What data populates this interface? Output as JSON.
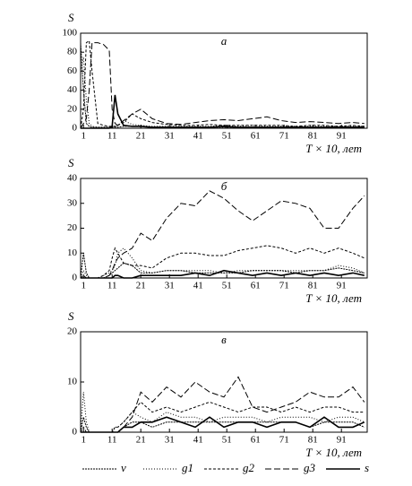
{
  "chart_data": [
    {
      "type": "line",
      "title": "а",
      "y_label": "S",
      "x_label": "T × 10, лет",
      "x": [
        0,
        1,
        2,
        3,
        4,
        6,
        8,
        10,
        11,
        12,
        13,
        15,
        18,
        21,
        25,
        30,
        35,
        40,
        45,
        50,
        55,
        60,
        65,
        70,
        75,
        80,
        85,
        90,
        95,
        99
      ],
      "xlim": [
        0,
        100
      ],
      "xticks": [
        1,
        11,
        21,
        31,
        41,
        51,
        61,
        71,
        81,
        91
      ],
      "ylim": [
        0,
        100
      ],
      "yticks": [
        0,
        20,
        40,
        60,
        80,
        100
      ],
      "grid": false,
      "series": [
        {
          "name": "v",
          "color": "#000000",
          "dash": "2,1",
          "values": [
            90,
            40,
            5,
            2,
            1,
            1,
            1,
            1,
            1,
            1,
            1,
            2,
            2,
            2,
            1,
            1,
            1,
            1,
            1,
            1,
            1,
            1,
            1,
            1,
            1,
            1,
            1,
            1,
            1,
            1
          ]
        },
        {
          "name": "g1",
          "color": "#000000",
          "dash": "1,2",
          "values": [
            60,
            75,
            30,
            5,
            2,
            1,
            1,
            1,
            1,
            2,
            3,
            8,
            4,
            3,
            2,
            2,
            2,
            2,
            2,
            3,
            2,
            3,
            2,
            2,
            2,
            2,
            2,
            2,
            2,
            2
          ]
        },
        {
          "name": "g2",
          "color": "#000000",
          "dash": "3,2",
          "values": [
            0,
            20,
            90,
            92,
            60,
            5,
            3,
            2,
            2,
            2,
            3,
            6,
            15,
            10,
            6,
            4,
            3,
            3,
            4,
            3,
            3,
            3,
            3,
            3,
            2,
            3,
            3,
            2,
            3,
            2
          ]
        },
        {
          "name": "g3",
          "color": "#000000",
          "dash": "7,3",
          "values": [
            0,
            5,
            10,
            40,
            90,
            90,
            88,
            82,
            20,
            5,
            3,
            8,
            15,
            20,
            10,
            5,
            4,
            6,
            8,
            9,
            8,
            10,
            12,
            8,
            6,
            7,
            6,
            5,
            6,
            5
          ]
        },
        {
          "name": "s",
          "color": "#000000",
          "dash": "",
          "values": [
            0,
            0,
            0,
            0,
            0,
            0,
            0,
            0,
            2,
            35,
            15,
            3,
            2,
            2,
            1,
            1,
            1,
            1,
            1,
            2,
            1,
            1,
            1,
            1,
            1,
            1,
            1,
            1,
            1,
            1
          ]
        }
      ]
    },
    {
      "type": "line",
      "title": "б",
      "y_label": "S",
      "x_label": "T × 10, лет",
      "x": [
        0,
        1,
        2,
        3,
        4,
        6,
        8,
        10,
        11,
        12,
        13,
        15,
        18,
        21,
        25,
        30,
        35,
        40,
        45,
        50,
        55,
        60,
        65,
        70,
        75,
        80,
        85,
        90,
        95,
        99
      ],
      "xlim": [
        0,
        100
      ],
      "xticks": [
        1,
        11,
        21,
        31,
        41,
        51,
        61,
        71,
        81,
        91
      ],
      "ylim": [
        0,
        40
      ],
      "yticks": [
        0,
        10,
        20,
        30,
        40
      ],
      "grid": false,
      "series": [
        {
          "name": "v",
          "color": "#000000",
          "dash": "2,1",
          "values": [
            0,
            10,
            2,
            0,
            0,
            0,
            0,
            1,
            2,
            3,
            4,
            6,
            5,
            2,
            2,
            3,
            3,
            2,
            2,
            2,
            2,
            3,
            3,
            3,
            2,
            3,
            3,
            4,
            3,
            2
          ]
        },
        {
          "name": "g1",
          "color": "#000000",
          "dash": "1,2",
          "values": [
            0,
            3,
            1,
            0,
            0,
            0,
            1,
            2,
            3,
            5,
            10,
            12,
            8,
            3,
            2,
            3,
            3,
            3,
            3,
            2,
            3,
            3,
            3,
            3,
            3,
            3,
            3,
            5,
            4,
            2
          ]
        },
        {
          "name": "g2",
          "color": "#000000",
          "dash": "3,2",
          "values": [
            0,
            1,
            0,
            0,
            0,
            0,
            1,
            3,
            8,
            12,
            10,
            6,
            5,
            5,
            4,
            8,
            10,
            10,
            9,
            9,
            11,
            12,
            13,
            12,
            10,
            12,
            10,
            12,
            10,
            8
          ]
        },
        {
          "name": "g3",
          "color": "#000000",
          "dash": "7,3",
          "values": [
            0,
            0,
            0,
            0,
            0,
            0,
            0,
            1,
            3,
            6,
            8,
            10,
            12,
            18,
            15,
            24,
            30,
            29,
            35,
            32,
            27,
            23,
            27,
            31,
            30,
            28,
            20,
            20,
            28,
            33
          ]
        },
        {
          "name": "s",
          "color": "#000000",
          "dash": "",
          "values": [
            0,
            0,
            0,
            0,
            0,
            0,
            0,
            0,
            0,
            1,
            1,
            0,
            0,
            1,
            1,
            1,
            1,
            2,
            1,
            3,
            2,
            1,
            2,
            1,
            2,
            1,
            2,
            1,
            2,
            1
          ]
        }
      ]
    },
    {
      "type": "line",
      "title": "в",
      "y_label": "S",
      "x_label": "T × 10, лет",
      "x": [
        0,
        1,
        2,
        3,
        4,
        6,
        8,
        10,
        11,
        12,
        13,
        15,
        18,
        21,
        25,
        30,
        35,
        40,
        45,
        50,
        55,
        60,
        65,
        70,
        75,
        80,
        85,
        90,
        95,
        99
      ],
      "xlim": [
        0,
        100
      ],
      "xticks": [
        1,
        11,
        21,
        31,
        41,
        51,
        61,
        71,
        81,
        91
      ],
      "ylim": [
        0,
        20
      ],
      "yticks": [
        0,
        10,
        20
      ],
      "grid": false,
      "series": [
        {
          "name": "v",
          "color": "#000000",
          "dash": "2,1",
          "values": [
            0,
            3,
            1,
            0,
            0,
            0,
            0,
            0,
            0,
            0,
            0,
            1,
            2,
            2,
            1,
            2,
            2,
            2,
            2,
            2,
            2,
            2,
            2,
            2,
            2,
            1,
            2,
            2,
            2,
            1
          ]
        },
        {
          "name": "g1",
          "color": "#000000",
          "dash": "1,2",
          "values": [
            0,
            8,
            2,
            0,
            0,
            0,
            0,
            0,
            0,
            1,
            1,
            2,
            4,
            3,
            2,
            4,
            3,
            3,
            2,
            3,
            3,
            3,
            2,
            3,
            3,
            3,
            2,
            3,
            3,
            2
          ]
        },
        {
          "name": "g2",
          "color": "#000000",
          "dash": "3,2",
          "values": [
            0,
            1,
            0,
            0,
            0,
            0,
            0,
            0,
            0,
            1,
            1,
            2,
            4,
            6,
            4,
            5,
            4,
            5,
            6,
            5,
            4,
            5,
            5,
            4,
            5,
            4,
            5,
            5,
            4,
            4
          ]
        },
        {
          "name": "g3",
          "color": "#000000",
          "dash": "7,3",
          "values": [
            0,
            0,
            0,
            0,
            0,
            0,
            0,
            0,
            0,
            0,
            0,
            1,
            3,
            8,
            6,
            9,
            7,
            10,
            8,
            7,
            11,
            5,
            4,
            5,
            6,
            8,
            7,
            7,
            9,
            6
          ]
        },
        {
          "name": "s",
          "color": "#000000",
          "dash": "",
          "values": [
            0,
            0,
            0,
            0,
            0,
            0,
            0,
            0,
            0,
            0,
            0,
            1,
            1,
            2,
            2,
            3,
            2,
            1,
            3,
            1,
            2,
            2,
            1,
            2,
            2,
            1,
            3,
            1,
            1,
            2
          ]
        }
      ]
    }
  ]
}
